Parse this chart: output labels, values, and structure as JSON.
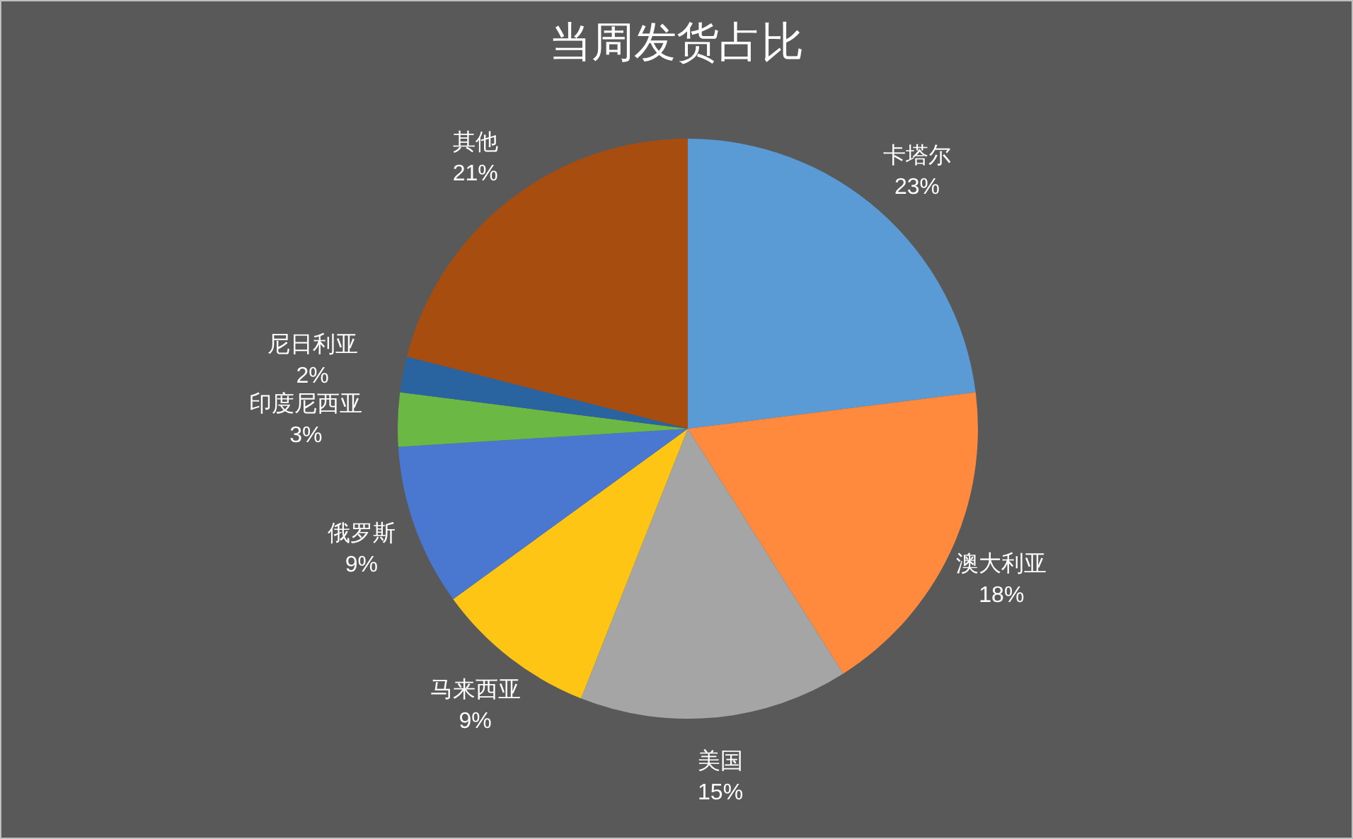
{
  "chart_data": {
    "type": "pie",
    "title": "当周发货占比",
    "categories": [
      "卡塔尔",
      "澳大利亚",
      "美国",
      "马来西亚",
      "俄罗斯",
      "印度尼西亚",
      "尼日利亚",
      "其他"
    ],
    "values": [
      23,
      18,
      15,
      9,
      9,
      3,
      2,
      21
    ],
    "value_labels": [
      "23%",
      "18%",
      "15%",
      "9%",
      "9%",
      "3%",
      "2%",
      "21%"
    ],
    "colors": [
      "#5b9bd5",
      "#ff8a3d",
      "#a5a5a5",
      "#ffc514",
      "#4a78d0",
      "#6cb845",
      "#2a64a0",
      "#a84d10"
    ],
    "legend": false
  }
}
